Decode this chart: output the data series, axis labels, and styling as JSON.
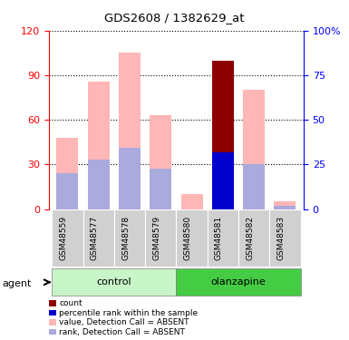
{
  "title": "GDS2608 / 1382629_at",
  "samples": [
    "GSM48559",
    "GSM48577",
    "GSM48578",
    "GSM48579",
    "GSM48580",
    "GSM48581",
    "GSM48582",
    "GSM48583"
  ],
  "value_absent": [
    48,
    86,
    105,
    63,
    10,
    null,
    80,
    5
  ],
  "rank_absent": [
    24,
    33,
    41,
    27,
    null,
    null,
    30,
    2
  ],
  "count_value": [
    null,
    null,
    null,
    null,
    null,
    100,
    null,
    null
  ],
  "percentile_rank": [
    null,
    null,
    null,
    null,
    null,
    38,
    null,
    null
  ],
  "ylim_left": [
    0,
    120
  ],
  "ylim_right": [
    0,
    100
  ],
  "yticks_left": [
    0,
    30,
    60,
    90,
    120
  ],
  "yticks_right": [
    0,
    25,
    50,
    75,
    100
  ],
  "color_count": "#8B0000",
  "color_percentile": "#0000CC",
  "color_value_absent": "#FFB6B6",
  "color_rank_absent": "#AAAADD",
  "color_control_bg": "#c8f5c8",
  "color_olanzapine_bg": "#44cc44",
  "color_sample_bg": "#d0d0d0",
  "legend_labels": [
    "count",
    "percentile rank within the sample",
    "value, Detection Call = ABSENT",
    "rank, Detection Call = ABSENT"
  ],
  "legend_colors": [
    "#8B0000",
    "#0000CC",
    "#FFB6B6",
    "#AAAADD"
  ]
}
